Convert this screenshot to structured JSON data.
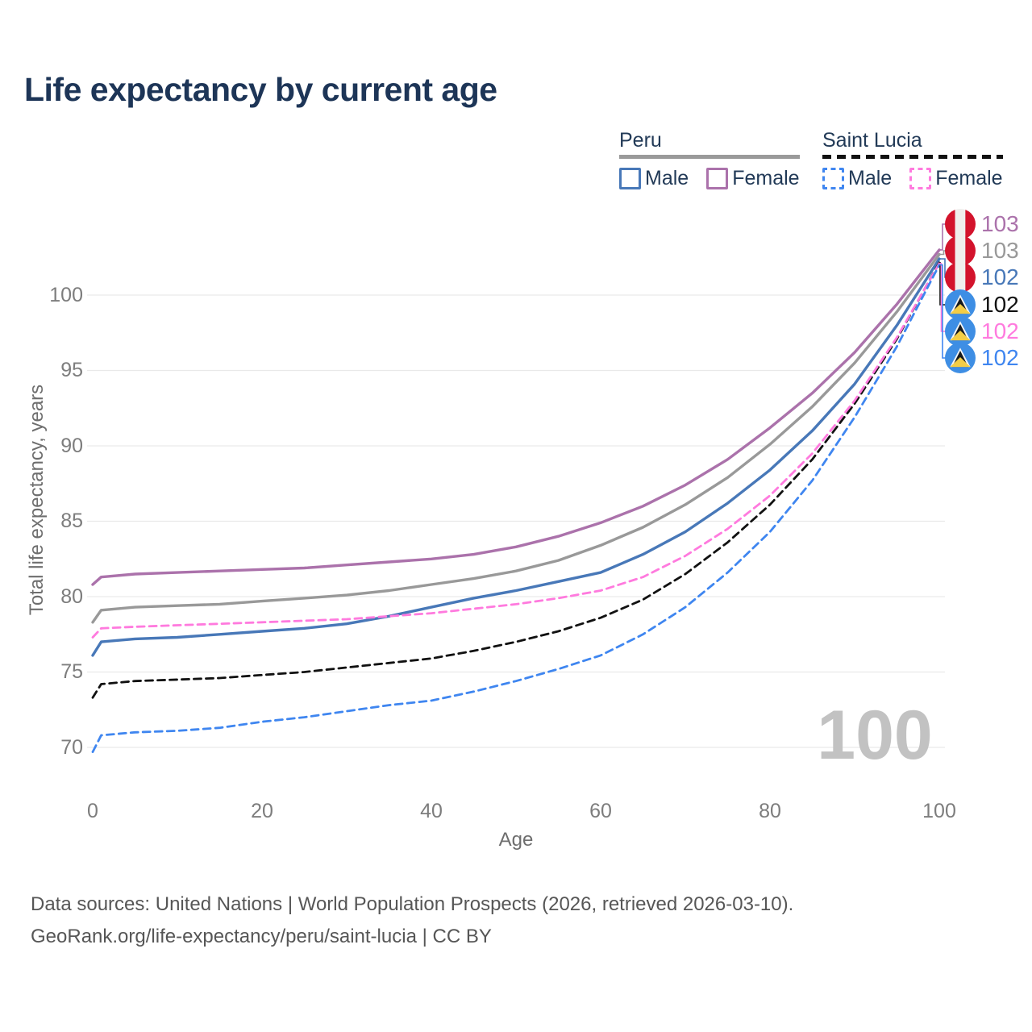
{
  "title": "Life expectancy by current age",
  "legend": {
    "peru": {
      "label": "Peru",
      "male": "Male",
      "female": "Female"
    },
    "saint_lucia": {
      "label": "Saint Lucia",
      "male": "Male",
      "female": "Female"
    }
  },
  "colors": {
    "title_text": "#1d3557",
    "legend_text": "#223a57",
    "peru_female": "#ab72ab",
    "peru_total": "#999999",
    "peru_male": "#4878b8",
    "slc_total": "#111111",
    "slc_female": "#ff7ade",
    "slc_male": "#3f86f0",
    "grid": "#e9e9e9",
    "tick_text": "#7d7d7d",
    "watermark_gray": "#c2c2c2",
    "footer_text": "#565656",
    "peru_flag_red": "#d3132c",
    "slc_flag_blue": "#3e8ee4"
  },
  "watermark": "100",
  "chart_data": {
    "type": "line",
    "title": "Life expectancy by current age",
    "xlabel": "Age",
    "ylabel": "Total life expectancy, years",
    "xticks": [
      0,
      20,
      40,
      60,
      80,
      100
    ],
    "yticks": [
      70,
      75,
      80,
      85,
      90,
      95,
      100
    ],
    "xlim": [
      0,
      100
    ],
    "ylim": [
      69,
      104
    ],
    "grid": "horizontal",
    "legend_position": "top-right",
    "x": [
      0,
      1,
      5,
      10,
      15,
      20,
      25,
      30,
      35,
      40,
      45,
      50,
      55,
      60,
      65,
      70,
      75,
      80,
      85,
      90,
      95,
      100
    ],
    "series": [
      {
        "name": "Peru Female",
        "country": "Peru",
        "sex": "Female",
        "color": "#ab72ab",
        "dash": false,
        "end_label": "103",
        "flag": "peru",
        "values": [
          80.8,
          81.3,
          81.5,
          81.6,
          81.7,
          81.8,
          81.9,
          82.1,
          82.3,
          82.5,
          82.8,
          83.3,
          84.0,
          84.9,
          86.0,
          87.4,
          89.1,
          91.2,
          93.5,
          96.2,
          99.4,
          103.0
        ]
      },
      {
        "name": "Peru Both sexes",
        "country": "Peru",
        "sex": "Both",
        "color": "#999999",
        "dash": false,
        "end_label": "103",
        "flag": "peru",
        "values": [
          78.3,
          79.1,
          79.3,
          79.4,
          79.5,
          79.7,
          79.9,
          80.1,
          80.4,
          80.8,
          81.2,
          81.7,
          82.4,
          83.4,
          84.6,
          86.1,
          87.9,
          90.1,
          92.6,
          95.5,
          98.9,
          102.7
        ]
      },
      {
        "name": "Peru Male",
        "country": "Peru",
        "sex": "Male",
        "color": "#4878b8",
        "dash": false,
        "end_label": "102",
        "flag": "peru",
        "values": [
          76.1,
          77.0,
          77.2,
          77.3,
          77.5,
          77.7,
          77.9,
          78.2,
          78.7,
          79.3,
          79.9,
          80.4,
          81.0,
          81.6,
          82.8,
          84.3,
          86.2,
          88.4,
          91.0,
          94.1,
          98.0,
          102.4
        ]
      },
      {
        "name": "Saint Lucia Both sexes",
        "country": "Saint Lucia",
        "sex": "Both",
        "color": "#111111",
        "dash": true,
        "end_label": "102",
        "flag": "saint-lucia",
        "values": [
          73.3,
          74.2,
          74.4,
          74.5,
          74.6,
          74.8,
          75.0,
          75.3,
          75.6,
          75.9,
          76.4,
          77.0,
          77.7,
          78.6,
          79.8,
          81.5,
          83.6,
          86.1,
          89.1,
          92.8,
          97.1,
          102.15
        ]
      },
      {
        "name": "Saint Lucia Female",
        "country": "Saint Lucia",
        "sex": "Female",
        "color": "#ff7ade",
        "dash": true,
        "end_label": "102",
        "flag": "saint-lucia",
        "values": [
          77.3,
          77.9,
          78.0,
          78.1,
          78.2,
          78.3,
          78.4,
          78.5,
          78.7,
          78.9,
          79.2,
          79.5,
          79.9,
          80.4,
          81.3,
          82.7,
          84.5,
          86.7,
          89.5,
          93.0,
          97.2,
          102.1
        ]
      },
      {
        "name": "Saint Lucia Male",
        "country": "Saint Lucia",
        "sex": "Male",
        "color": "#3f86f0",
        "dash": true,
        "end_label": "102",
        "flag": "saint-lucia",
        "values": [
          69.7,
          70.8,
          71.0,
          71.1,
          71.3,
          71.7,
          72.0,
          72.4,
          72.8,
          73.1,
          73.7,
          74.4,
          75.2,
          76.1,
          77.5,
          79.3,
          81.6,
          84.3,
          87.7,
          91.9,
          96.6,
          102.0
        ]
      }
    ]
  },
  "footer": {
    "line1": "Data sources: United Nations | World Population Prospects (2026, retrieved 2026-03-10).",
    "line2": "GeoRank.org/life-expectancy/peru/saint-lucia | CC BY"
  }
}
